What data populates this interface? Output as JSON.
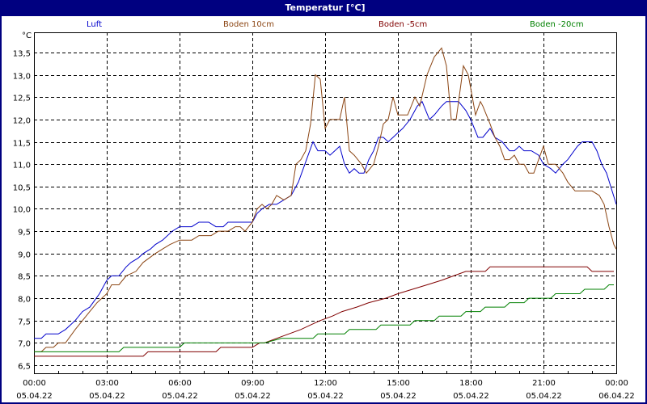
{
  "window": {
    "title": "Temperatur [°C]",
    "title_bg": "#000080"
  },
  "legend": [
    {
      "label": "Luft",
      "color": "#0000cc"
    },
    {
      "label": "Boden 10cm",
      "color": "#8b4513"
    },
    {
      "label": "Boden -5cm",
      "color": "#800000"
    },
    {
      "label": "Boden -20cm",
      "color": "#008000"
    }
  ],
  "chart_data": {
    "type": "line",
    "title": "Temperatur [°C]",
    "xlabel": "",
    "ylabel": "°C",
    "ylim": [
      6.3,
      13.8
    ],
    "xlim_hours": [
      0,
      24
    ],
    "grid": true,
    "legend_position": "top",
    "y_ticks": [
      "6,5",
      "7,0",
      "7,5",
      "8,0",
      "8,5",
      "9,0",
      "9,5",
      "10,0",
      "10,5",
      "11,0",
      "11,5",
      "12,0",
      "12,5",
      "13,0",
      "13,5"
    ],
    "x_ticks": [
      {
        "time": "00:00",
        "date": "05.04.22"
      },
      {
        "time": "03:00",
        "date": "05.04.22"
      },
      {
        "time": "06:00",
        "date": "05.04.22"
      },
      {
        "time": "09:00",
        "date": "05.04.22"
      },
      {
        "time": "12:00",
        "date": "05.04.22"
      },
      {
        "time": "15:00",
        "date": "05.04.22"
      },
      {
        "time": "18:00",
        "date": "05.04.22"
      },
      {
        "time": "21:00",
        "date": "05.04.22"
      },
      {
        "time": "00:00",
        "date": "06.04.22"
      }
    ],
    "series": [
      {
        "name": "Luft",
        "color": "#0000cc",
        "points": [
          [
            0,
            7.1
          ],
          [
            0.3,
            7.1
          ],
          [
            0.5,
            7.2
          ],
          [
            1.0,
            7.2
          ],
          [
            1.3,
            7.3
          ],
          [
            1.7,
            7.5
          ],
          [
            2.0,
            7.7
          ],
          [
            2.3,
            7.8
          ],
          [
            2.7,
            8.1
          ],
          [
            3.0,
            8.4
          ],
          [
            3.2,
            8.5
          ],
          [
            3.5,
            8.5
          ],
          [
            3.8,
            8.7
          ],
          [
            4.0,
            8.8
          ],
          [
            4.3,
            8.9
          ],
          [
            4.5,
            9.0
          ],
          [
            4.8,
            9.1
          ],
          [
            5.0,
            9.2
          ],
          [
            5.3,
            9.3
          ],
          [
            5.7,
            9.5
          ],
          [
            6.0,
            9.6
          ],
          [
            6.5,
            9.6
          ],
          [
            6.8,
            9.7
          ],
          [
            7.2,
            9.7
          ],
          [
            7.5,
            9.6
          ],
          [
            7.8,
            9.6
          ],
          [
            8.0,
            9.7
          ],
          [
            9.0,
            9.7
          ],
          [
            9.2,
            9.9
          ],
          [
            9.4,
            10.0
          ],
          [
            9.7,
            10.1
          ],
          [
            10.0,
            10.1
          ],
          [
            10.3,
            10.2
          ],
          [
            10.6,
            10.3
          ],
          [
            10.9,
            10.6
          ],
          [
            11.1,
            10.9
          ],
          [
            11.3,
            11.2
          ],
          [
            11.5,
            11.5
          ],
          [
            11.7,
            11.3
          ],
          [
            12.0,
            11.3
          ],
          [
            12.2,
            11.2
          ],
          [
            12.4,
            11.3
          ],
          [
            12.6,
            11.4
          ],
          [
            12.8,
            11.0
          ],
          [
            13.0,
            10.8
          ],
          [
            13.2,
            10.9
          ],
          [
            13.4,
            10.8
          ],
          [
            13.6,
            10.8
          ],
          [
            13.8,
            11.1
          ],
          [
            14.0,
            11.3
          ],
          [
            14.2,
            11.6
          ],
          [
            14.4,
            11.6
          ],
          [
            14.6,
            11.5
          ],
          [
            14.8,
            11.6
          ],
          [
            15.0,
            11.7
          ],
          [
            15.2,
            11.8
          ],
          [
            15.5,
            12.0
          ],
          [
            15.8,
            12.3
          ],
          [
            16.0,
            12.4
          ],
          [
            16.3,
            12.0
          ],
          [
            16.5,
            12.1
          ],
          [
            16.8,
            12.3
          ],
          [
            17.0,
            12.4
          ],
          [
            17.5,
            12.4
          ],
          [
            17.8,
            12.2
          ],
          [
            18.0,
            12.0
          ],
          [
            18.3,
            11.6
          ],
          [
            18.5,
            11.6
          ],
          [
            18.8,
            11.8
          ],
          [
            19.0,
            11.6
          ],
          [
            19.3,
            11.5
          ],
          [
            19.6,
            11.3
          ],
          [
            19.8,
            11.3
          ],
          [
            20.0,
            11.4
          ],
          [
            20.2,
            11.3
          ],
          [
            20.5,
            11.3
          ],
          [
            20.8,
            11.2
          ],
          [
            21.0,
            11.0
          ],
          [
            21.3,
            10.9
          ],
          [
            21.5,
            10.8
          ],
          [
            21.8,
            11.0
          ],
          [
            22.0,
            11.1
          ],
          [
            22.4,
            11.4
          ],
          [
            22.6,
            11.5
          ],
          [
            23.0,
            11.5
          ],
          [
            23.2,
            11.3
          ],
          [
            23.4,
            11.0
          ],
          [
            23.6,
            10.8
          ],
          [
            24.0,
            10.1
          ]
        ]
      },
      {
        "name": "Boden 10cm",
        "color": "#8b4513",
        "points": [
          [
            0,
            6.8
          ],
          [
            0.3,
            6.8
          ],
          [
            0.5,
            6.9
          ],
          [
            0.8,
            6.9
          ],
          [
            1.0,
            7.0
          ],
          [
            1.3,
            7.0
          ],
          [
            1.7,
            7.3
          ],
          [
            2.0,
            7.5
          ],
          [
            2.3,
            7.7
          ],
          [
            2.6,
            7.9
          ],
          [
            3.0,
            8.1
          ],
          [
            3.2,
            8.3
          ],
          [
            3.5,
            8.3
          ],
          [
            3.8,
            8.5
          ],
          [
            4.2,
            8.6
          ],
          [
            4.5,
            8.8
          ],
          [
            5.0,
            9.0
          ],
          [
            5.3,
            9.1
          ],
          [
            5.6,
            9.2
          ],
          [
            6.0,
            9.3
          ],
          [
            6.5,
            9.3
          ],
          [
            6.8,
            9.4
          ],
          [
            7.3,
            9.4
          ],
          [
            7.6,
            9.5
          ],
          [
            8.0,
            9.5
          ],
          [
            8.3,
            9.6
          ],
          [
            8.5,
            9.6
          ],
          [
            8.7,
            9.5
          ],
          [
            9.0,
            9.7
          ],
          [
            9.2,
            10.0
          ],
          [
            9.4,
            10.1
          ],
          [
            9.6,
            10.0
          ],
          [
            9.8,
            10.1
          ],
          [
            10.0,
            10.3
          ],
          [
            10.3,
            10.2
          ],
          [
            10.6,
            10.3
          ],
          [
            10.8,
            11.0
          ],
          [
            11.0,
            11.1
          ],
          [
            11.2,
            11.3
          ],
          [
            11.4,
            11.9
          ],
          [
            11.6,
            13.0
          ],
          [
            11.8,
            12.9
          ],
          [
            12.0,
            11.8
          ],
          [
            12.2,
            12.0
          ],
          [
            12.6,
            12.0
          ],
          [
            12.8,
            12.5
          ],
          [
            13.0,
            11.3
          ],
          [
            13.2,
            11.2
          ],
          [
            13.5,
            11.0
          ],
          [
            13.7,
            10.8
          ],
          [
            14.0,
            11.0
          ],
          [
            14.2,
            11.4
          ],
          [
            14.4,
            11.9
          ],
          [
            14.6,
            12.0
          ],
          [
            14.8,
            12.5
          ],
          [
            15.0,
            12.1
          ],
          [
            15.4,
            12.1
          ],
          [
            15.7,
            12.5
          ],
          [
            15.9,
            12.3
          ],
          [
            16.2,
            13.0
          ],
          [
            16.5,
            13.4
          ],
          [
            16.8,
            13.6
          ],
          [
            17.0,
            13.2
          ],
          [
            17.2,
            12.0
          ],
          [
            17.4,
            12.0
          ],
          [
            17.7,
            13.2
          ],
          [
            17.9,
            13.0
          ],
          [
            18.2,
            12.1
          ],
          [
            18.4,
            12.4
          ],
          [
            18.5,
            12.3
          ],
          [
            18.8,
            11.9
          ],
          [
            19.0,
            11.6
          ],
          [
            19.2,
            11.4
          ],
          [
            19.4,
            11.1
          ],
          [
            19.6,
            11.1
          ],
          [
            19.8,
            11.2
          ],
          [
            20.0,
            11.0
          ],
          [
            20.2,
            11.0
          ],
          [
            20.4,
            10.8
          ],
          [
            20.6,
            10.8
          ],
          [
            20.8,
            11.1
          ],
          [
            21.0,
            11.4
          ],
          [
            21.2,
            11.0
          ],
          [
            21.5,
            11.0
          ],
          [
            21.8,
            10.8
          ],
          [
            22.0,
            10.6
          ],
          [
            22.3,
            10.4
          ],
          [
            23.0,
            10.4
          ],
          [
            23.3,
            10.3
          ],
          [
            23.5,
            10.1
          ],
          [
            23.7,
            9.6
          ],
          [
            23.9,
            9.2
          ],
          [
            24.0,
            9.1
          ]
        ]
      },
      {
        "name": "Boden -5cm",
        "color": "#800000",
        "points": [
          [
            0,
            6.7
          ],
          [
            4.5,
            6.7
          ],
          [
            4.7,
            6.8
          ],
          [
            7.5,
            6.8
          ],
          [
            7.7,
            6.9
          ],
          [
            9.0,
            6.9
          ],
          [
            9.3,
            7.0
          ],
          [
            9.5,
            7.0
          ]
        ]
      },
      {
        "name": "Boden -20cm",
        "color": "#008000",
        "points": [
          [
            0,
            6.8
          ],
          [
            3.5,
            6.8
          ],
          [
            3.7,
            6.9
          ],
          [
            6.0,
            6.9
          ],
          [
            6.2,
            7.0
          ],
          [
            9.5,
            7.0
          ]
        ]
      }
    ]
  }
}
